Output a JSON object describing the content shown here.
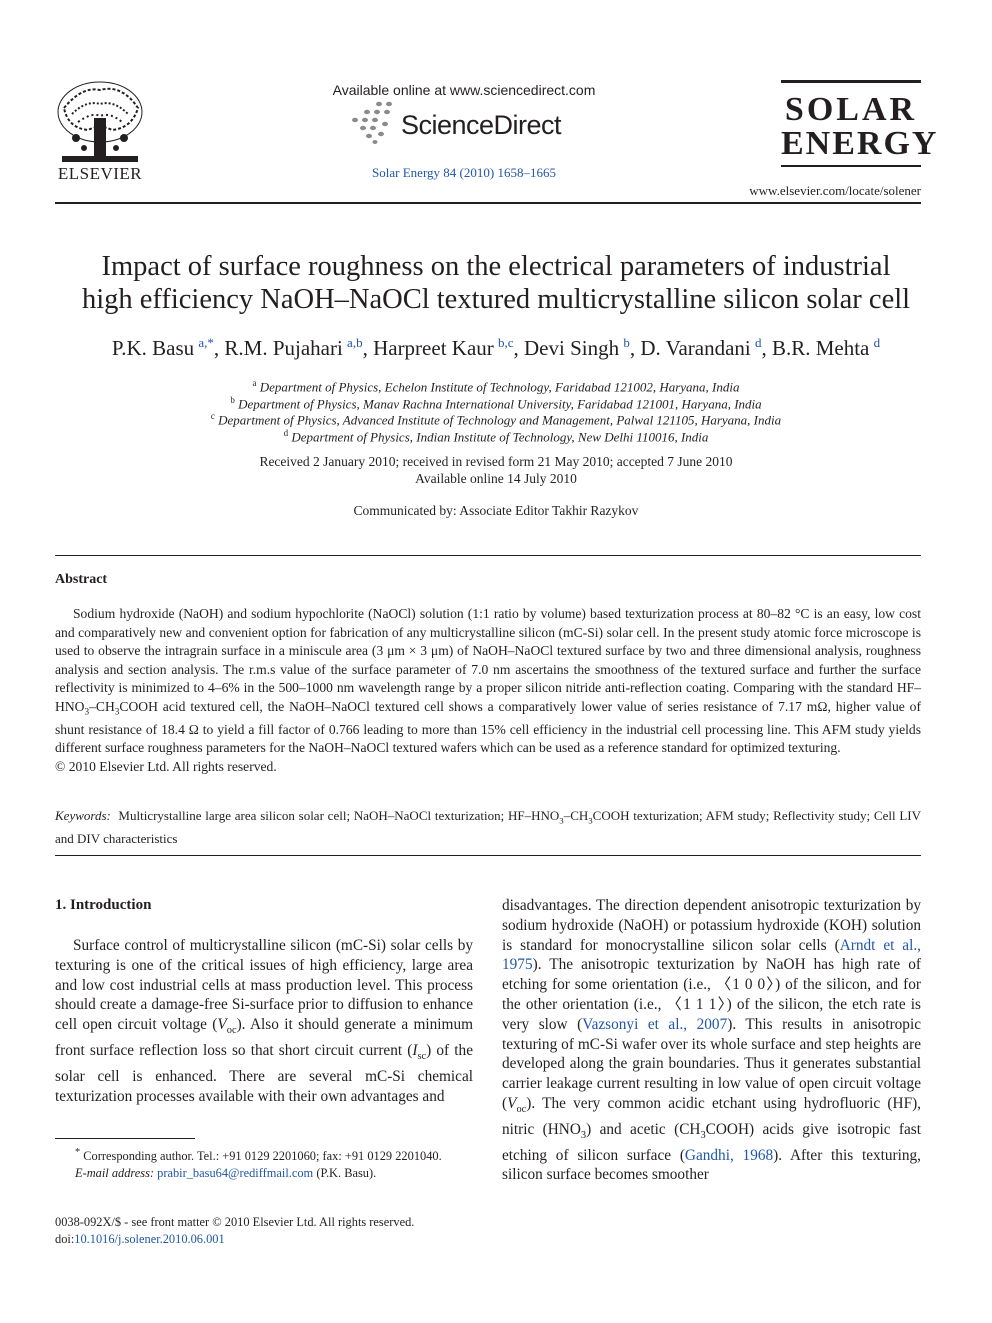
{
  "header": {
    "publisher_logo": "ELSEVIER",
    "available_online": "Available online at www.sciencedirect.com",
    "sciencedirect_logo": "ScienceDirect",
    "journal_reference": "Solar Energy 84 (2010) 1658–1665",
    "journal_logo": {
      "line1": "SOLAR",
      "line2": "ENERGY"
    },
    "journal_url": "www.elsevier.com/locate/solener"
  },
  "article": {
    "title_line1": "Impact of surface roughness on the electrical parameters of industrial",
    "title_line2": "high efficiency NaOH–NaOCl textured multicrystalline silicon solar cell",
    "authors": [
      {
        "name": "P.K. Basu",
        "sup": "a,*"
      },
      {
        "name": "R.M. Pujahari",
        "sup": "a,b"
      },
      {
        "name": "Harpreet Kaur",
        "sup": "b,c"
      },
      {
        "name": "Devi Singh",
        "sup": "b"
      },
      {
        "name": "D. Varandani",
        "sup": "d"
      },
      {
        "name": "B.R. Mehta",
        "sup": "d"
      }
    ],
    "affiliations": [
      {
        "key": "a",
        "text": "Department of Physics, Echelon Institute of Technology, Faridabad 121002, Haryana, India"
      },
      {
        "key": "b",
        "text": "Department of Physics, Manav Rachna International University, Faridabad 121001, Haryana, India"
      },
      {
        "key": "c",
        "text": "Department of Physics, Advanced Institute of Technology and Management, Palwal 121105, Haryana, India"
      },
      {
        "key": "d",
        "text": "Department of Physics, Indian Institute of Technology, New Delhi 110016, India"
      }
    ],
    "received": "Received 2 January 2010; received in revised form 21 May 2010; accepted 7 June 2010",
    "available": "Available online 14 July 2010",
    "communicated": "Communicated by: Associate Editor Takhir Razykov"
  },
  "abstract": {
    "heading": "Abstract",
    "copyright": "© 2010 Elsevier Ltd. All rights reserved."
  },
  "keywords": {
    "label": "Keywords:"
  },
  "introduction": {
    "heading": "1. Introduction"
  },
  "footnote": {
    "star": "*",
    "corresponding": "Corresponding author. Tel.: +91 0129 2201060; fax: +91 0129 2201040.",
    "email_label": "E-mail address:",
    "email": "prabir_basu64@rediffmail.com",
    "email_owner": "(P.K. Basu)."
  },
  "front_matter": {
    "issn_line": "0038-092X/$ - see front matter © 2010 Elsevier Ltd. All rights reserved.",
    "doi_prefix": "doi:",
    "doi": "10.1016/j.solener.2010.06.001"
  }
}
